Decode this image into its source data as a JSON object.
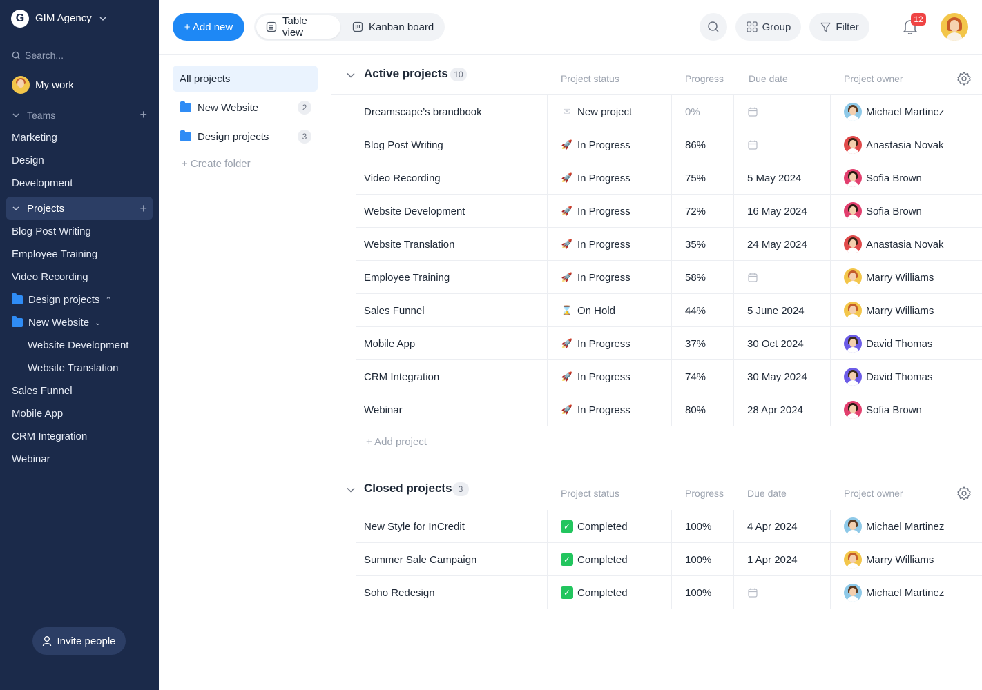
{
  "sidebar": {
    "brand_initial": "G",
    "brand_name": "GIM Agency",
    "search_placeholder": "Search...",
    "my_work": "My work",
    "teams_label": "Teams",
    "teams": [
      "Marketing",
      "Design",
      "Development"
    ],
    "projects_label": "Projects",
    "projects": [
      "Blog Post Writing",
      "Employee Training",
      "Video Recording"
    ],
    "folder_design": "Design projects",
    "folder_new_website": "New Website",
    "nested": [
      "Website Development",
      "Website Translation"
    ],
    "projects_after": [
      "Sales Funnel",
      "Mobile App",
      "CRM Integration",
      "Webinar"
    ],
    "invite": "Invite people"
  },
  "topbar": {
    "add_new": "+ Add new",
    "table_view": "Table view",
    "kanban_board": "Kanban board",
    "group": "Group",
    "filter": "Filter",
    "notifications": "12"
  },
  "folders": {
    "all_projects": "All projects",
    "items": [
      {
        "name": "New Website",
        "count": "2"
      },
      {
        "name": "Design projects",
        "count": "3"
      }
    ],
    "create_folder": "+ Create folder"
  },
  "columns": {
    "status": "Project status",
    "progress": "Progress",
    "due": "Due date",
    "owner": "Project owner"
  },
  "active": {
    "title": "Active projects",
    "count": "10",
    "add_project": "+ Add project",
    "rows": [
      {
        "name": "Dreamscape’s brandbook",
        "status": "New project",
        "status_icon": "envelope-icon",
        "progress": "0%",
        "due": "",
        "owner": "Michael Martinez"
      },
      {
        "name": "Blog Post Writing",
        "status": "In Progress",
        "status_icon": "rocket-icon",
        "progress": "86%",
        "due": "",
        "owner": "Anastasia Novak"
      },
      {
        "name": "Video Recording",
        "status": "In Progress",
        "status_icon": "rocket-icon",
        "progress": "75%",
        "due": "5 May 2024",
        "owner": "Sofia Brown"
      },
      {
        "name": "Website Development",
        "status": "In Progress",
        "status_icon": "rocket-icon",
        "progress": "72%",
        "due": "16 May 2024",
        "owner": "Sofia Brown"
      },
      {
        "name": "Website Translation",
        "status": "In Progress",
        "status_icon": "rocket-icon",
        "progress": "35%",
        "due": "24 May 2024",
        "owner": "Anastasia Novak"
      },
      {
        "name": "Employee Training",
        "status": "In Progress",
        "status_icon": "rocket-icon",
        "progress": "58%",
        "due": "",
        "owner": "Marry Williams"
      },
      {
        "name": "Sales Funnel",
        "status": "On Hold",
        "status_icon": "hourglass-icon",
        "progress": "44%",
        "due": "5 June 2024",
        "owner": "Marry Williams"
      },
      {
        "name": "Mobile App",
        "status": "In Progress",
        "status_icon": "rocket-icon",
        "progress": "37%",
        "due": "30 Oct 2024",
        "owner": "David Thomas"
      },
      {
        "name": "CRM Integration",
        "status": "In Progress",
        "status_icon": "rocket-icon",
        "progress": "74%",
        "due": "30 May 2024",
        "owner": "David Thomas"
      },
      {
        "name": "Webinar",
        "status": "In Progress",
        "status_icon": "rocket-icon",
        "progress": "80%",
        "due": "28 Apr 2024",
        "owner": "Sofia Brown"
      }
    ]
  },
  "closed": {
    "title": "Closed projects",
    "count": "3",
    "rows": [
      {
        "name": "New Style for InCredit",
        "status": "Completed",
        "status_icon": "check-icon",
        "progress": "100%",
        "due": "4 Apr 2024",
        "owner": "Michael Martinez"
      },
      {
        "name": "Summer Sale Campaign",
        "status": "Completed",
        "status_icon": "check-icon",
        "progress": "100%",
        "due": "1 Apr 2024",
        "owner": "Marry Williams"
      },
      {
        "name": "Soho Redesign",
        "status": "Completed",
        "status_icon": "check-icon",
        "progress": "100%",
        "due": "",
        "owner": "Michael Martinez"
      }
    ]
  },
  "owner_colors": {
    "Michael Martinez": {
      "bg": "#8ec9e8",
      "hair": "#5a3a22"
    },
    "Anastasia Novak": {
      "bg": "#e04a4a",
      "hair": "#3b2417"
    },
    "Sofia Brown": {
      "bg": "#e23f6e",
      "hair": "#2a1a12"
    },
    "Marry Williams": {
      "bg": "#f3c64a",
      "hair": "#c25b2a"
    },
    "David Thomas": {
      "bg": "#6c5ce7",
      "hair": "#3a2a1a"
    }
  }
}
